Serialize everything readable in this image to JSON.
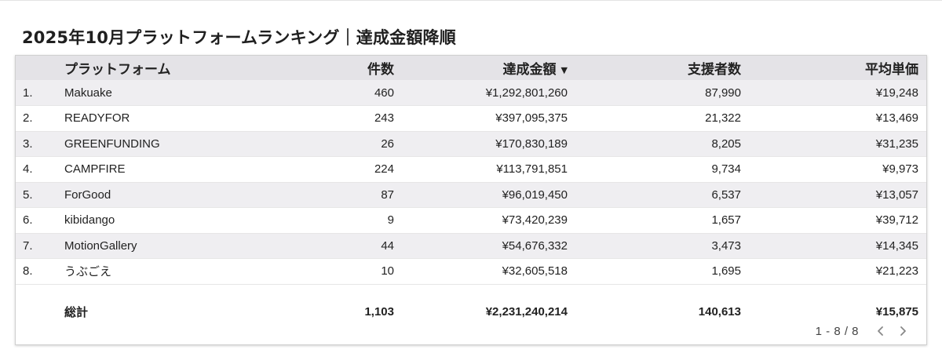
{
  "title": "2025年10月プラットフォームランキング｜達成金額降順",
  "table": {
    "columns": {
      "platform": "プラットフォーム",
      "count": "件数",
      "amount": "達成金額",
      "backers": "支援者数",
      "avg_price": "平均単価"
    },
    "sort_indicator": "▼",
    "rows": [
      {
        "rank": "1.",
        "platform": "Makuake",
        "count": "460",
        "amount": "¥1,292,801,260",
        "backers": "87,990",
        "avg_price": "¥19,248"
      },
      {
        "rank": "2.",
        "platform": "READYFOR",
        "count": "243",
        "amount": "¥397,095,375",
        "backers": "21,322",
        "avg_price": "¥13,469"
      },
      {
        "rank": "3.",
        "platform": "GREENFUNDING",
        "count": "26",
        "amount": "¥170,830,189",
        "backers": "8,205",
        "avg_price": "¥31,235"
      },
      {
        "rank": "4.",
        "platform": "CAMPFIRE",
        "count": "224",
        "amount": "¥113,791,851",
        "backers": "9,734",
        "avg_price": "¥9,973"
      },
      {
        "rank": "5.",
        "platform": "ForGood",
        "count": "87",
        "amount": "¥96,019,450",
        "backers": "6,537",
        "avg_price": "¥13,057"
      },
      {
        "rank": "6.",
        "platform": "kibidango",
        "count": "9",
        "amount": "¥73,420,239",
        "backers": "1,657",
        "avg_price": "¥39,712"
      },
      {
        "rank": "7.",
        "platform": "MotionGallery",
        "count": "44",
        "amount": "¥54,676,332",
        "backers": "3,473",
        "avg_price": "¥14,345"
      },
      {
        "rank": "8.",
        "platform": "うぶごえ",
        "count": "10",
        "amount": "¥32,605,518",
        "backers": "1,695",
        "avg_price": "¥21,223"
      }
    ],
    "total": {
      "label": "総計",
      "count": "1,103",
      "amount": "¥2,231,240,214",
      "backers": "140,613",
      "avg_price": "¥15,875"
    }
  },
  "pagination": {
    "range": "1 - 8 / 8",
    "prev_icon": "chevron-left-icon",
    "next_icon": "chevron-right-icon"
  }
}
